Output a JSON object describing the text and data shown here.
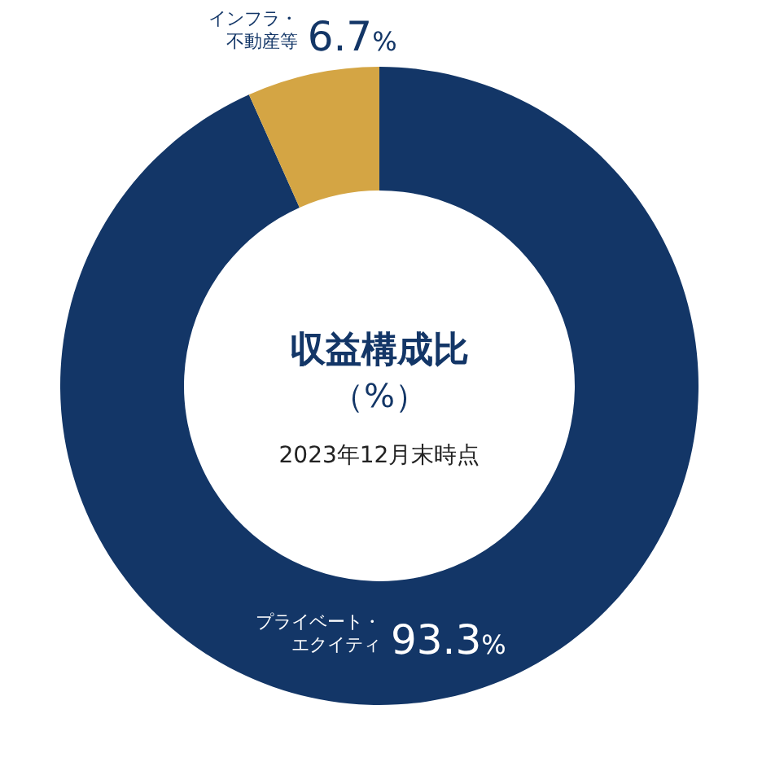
{
  "chart_data": {
    "type": "donut",
    "title": "収益構成比",
    "subtitle": "（%）",
    "annotations": [
      "2023年12月末時点"
    ],
    "categories": [
      "プライベート・エクイティ",
      "インフラ・不動産等"
    ],
    "values": [
      93.3,
      6.7
    ],
    "colors": [
      "#133667",
      "#d4a544"
    ],
    "value_labels": [
      "93.3%",
      "6.7%"
    ]
  }
}
